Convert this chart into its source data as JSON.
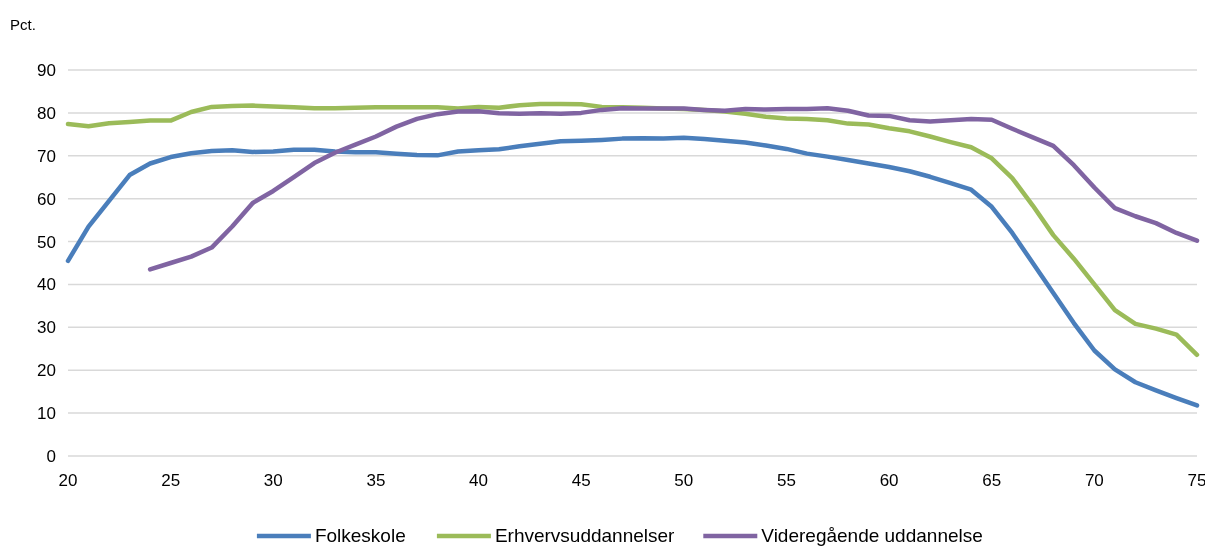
{
  "chart_data": {
    "type": "line",
    "ylabel": "Pct.",
    "xlim": [
      20,
      75
    ],
    "xticks": [
      20,
      25,
      30,
      35,
      40,
      45,
      50,
      55,
      60,
      65,
      70,
      75
    ],
    "ylim": [
      0,
      90
    ],
    "yticks": [
      0,
      10,
      20,
      30,
      40,
      50,
      60,
      70,
      80,
      90
    ],
    "grid": "y",
    "legend": "bottom",
    "marker": "none",
    "line_style": "solid",
    "x": [
      20,
      21,
      22,
      23,
      24,
      25,
      26,
      27,
      28,
      29,
      30,
      31,
      32,
      33,
      34,
      35,
      36,
      37,
      38,
      39,
      40,
      41,
      42,
      43,
      44,
      45,
      46,
      47,
      48,
      49,
      50,
      51,
      52,
      53,
      54,
      55,
      56,
      57,
      58,
      59,
      60,
      61,
      62,
      63,
      64,
      65,
      66,
      67,
      68,
      69,
      70,
      71,
      72,
      73,
      74,
      75
    ],
    "series": [
      {
        "name": "Folkeskole",
        "color": "#4a7ebb",
        "values": [
          45.5,
          53.5,
          59.5,
          65.5,
          68.2,
          69.7,
          70.6,
          71.1,
          71.3,
          70.9,
          71.0,
          71.4,
          71.4,
          71.0,
          70.8,
          70.8,
          70.5,
          70.2,
          70.1,
          71.0,
          71.3,
          71.5,
          72.2,
          72.8,
          73.4,
          73.5,
          73.7,
          74.0,
          74.1,
          74.0,
          74.2,
          73.9,
          73.5,
          73.1,
          72.4,
          71.6,
          70.5,
          69.8,
          69.0,
          68.2,
          67.4,
          66.4,
          65.1,
          63.6,
          62.1,
          58.1,
          52.0,
          45.0,
          38.0,
          31.0,
          24.6,
          20.2,
          17.2,
          15.3,
          13.5,
          11.8
        ]
      },
      {
        "name": "Erhvervsuddannelser",
        "color": "#9bbb59",
        "values": [
          77.4,
          76.9,
          77.6,
          77.9,
          78.2,
          78.2,
          80.2,
          81.4,
          81.6,
          81.7,
          81.5,
          81.3,
          81.1,
          81.1,
          81.2,
          81.3,
          81.3,
          81.3,
          81.3,
          81.0,
          81.4,
          81.2,
          81.8,
          82.1,
          82.1,
          82.0,
          81.4,
          81.3,
          81.2,
          81.0,
          80.9,
          80.7,
          80.3,
          79.8,
          79.1,
          78.7,
          78.6,
          78.3,
          77.5,
          77.3,
          76.4,
          75.7,
          74.5,
          73.2,
          72.0,
          69.4,
          64.8,
          58.4,
          51.5,
          46.0,
          40.0,
          34.0,
          30.8,
          29.7,
          28.3,
          23.6
        ]
      },
      {
        "name": "Videregående uddannelse",
        "color": "#8064a2",
        "x": [
          24,
          25,
          26,
          27,
          28,
          29,
          30,
          31,
          32,
          33,
          34,
          35,
          36,
          37,
          38,
          39,
          40,
          41,
          42,
          43,
          44,
          45,
          46,
          47,
          48,
          49,
          50,
          51,
          52,
          53,
          54,
          55,
          56,
          57,
          58,
          59,
          60,
          61,
          62,
          63,
          64,
          65,
          66,
          67,
          68,
          69,
          70,
          71,
          72,
          73,
          74,
          75
        ],
        "values": [
          43.5,
          45.0,
          46.5,
          48.6,
          53.5,
          59.0,
          61.8,
          65.0,
          68.3,
          70.7,
          72.6,
          74.5,
          76.8,
          78.6,
          79.7,
          80.3,
          80.4,
          79.9,
          79.8,
          79.9,
          79.8,
          80.0,
          80.7,
          81.1,
          81.0,
          81.0,
          81.0,
          80.7,
          80.5,
          80.9,
          80.8,
          80.9,
          80.9,
          81.1,
          80.5,
          79.4,
          79.3,
          78.3,
          78.0,
          78.3,
          78.6,
          78.4,
          76.3,
          74.3,
          72.3,
          67.8,
          62.6,
          57.8,
          55.9,
          54.3,
          52.0,
          50.2
        ]
      }
    ]
  }
}
